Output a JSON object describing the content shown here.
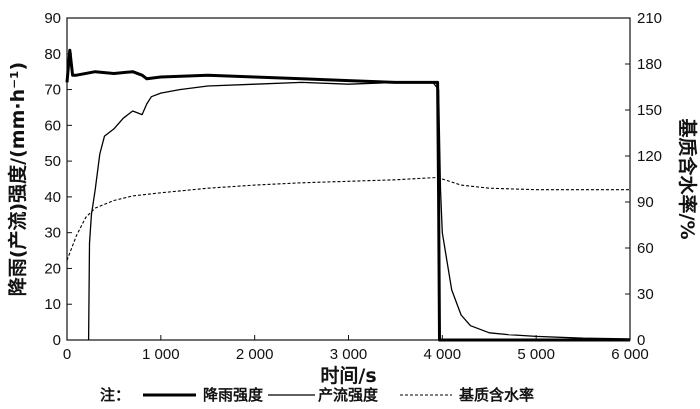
{
  "chart_data": {
    "type": "line",
    "xlabel": "时间/s",
    "ylabel": "降雨(产流)强度/(mm·h⁻¹)",
    "y2label": "基质含水率/%",
    "xlim": [
      0,
      6000
    ],
    "ylim": [
      0,
      90
    ],
    "y2lim": [
      0,
      210
    ],
    "x_ticks": [
      "0",
      "1 000",
      "2 000",
      "3 000",
      "4 000",
      "5 000",
      "6 000"
    ],
    "y_ticks": [
      "0",
      "10",
      "20",
      "30",
      "40",
      "50",
      "60",
      "70",
      "80",
      "90"
    ],
    "y2_ticks": [
      "0",
      "30",
      "60",
      "90",
      "120",
      "150",
      "180",
      "210"
    ],
    "grid": false,
    "legend_position": "bottom",
    "legend_prefix": "注：",
    "series": [
      {
        "name": "降雨强度",
        "axis": "left",
        "style": "thick",
        "x": [
          0,
          30,
          60,
          100,
          300,
          500,
          700,
          800,
          850,
          1000,
          1500,
          2000,
          2500,
          3000,
          3500,
          3950,
          3960,
          3970,
          6000
        ],
        "y": [
          72,
          81,
          74,
          74,
          75,
          74.5,
          75,
          74,
          73,
          73.5,
          74,
          73.5,
          73,
          72.5,
          72,
          72,
          40,
          0,
          0
        ]
      },
      {
        "name": "产流强度",
        "axis": "left",
        "style": "thin",
        "x": [
          230,
          240,
          260,
          300,
          350,
          400,
          500,
          600,
          700,
          800,
          850,
          900,
          1000,
          1200,
          1500,
          2000,
          2500,
          3000,
          3500,
          3900,
          3960,
          3980,
          4000,
          4050,
          4100,
          4200,
          4300,
          4500,
          4700,
          5000,
          5500,
          6000
        ],
        "y": [
          0,
          27,
          35,
          42,
          52,
          57,
          59,
          62,
          64,
          63,
          66,
          68,
          69,
          70,
          71,
          71.5,
          72,
          71.5,
          72,
          72,
          70,
          42,
          30,
          22,
          14,
          7,
          4,
          2,
          1.5,
          1,
          0.5,
          0.3
        ]
      },
      {
        "name": "基质含水率",
        "axis": "right",
        "style": "dashed",
        "x": [
          0,
          100,
          200,
          300,
          500,
          700,
          1000,
          1500,
          2000,
          2500,
          3000,
          3500,
          3800,
          3950,
          4050,
          4200,
          4500,
          5000,
          6000
        ],
        "y": [
          52,
          68,
          80,
          86,
          91,
          94,
          96,
          99,
          101,
          102.5,
          103.5,
          104.5,
          105.5,
          106,
          104,
          101,
          99,
          98,
          98
        ]
      }
    ]
  }
}
